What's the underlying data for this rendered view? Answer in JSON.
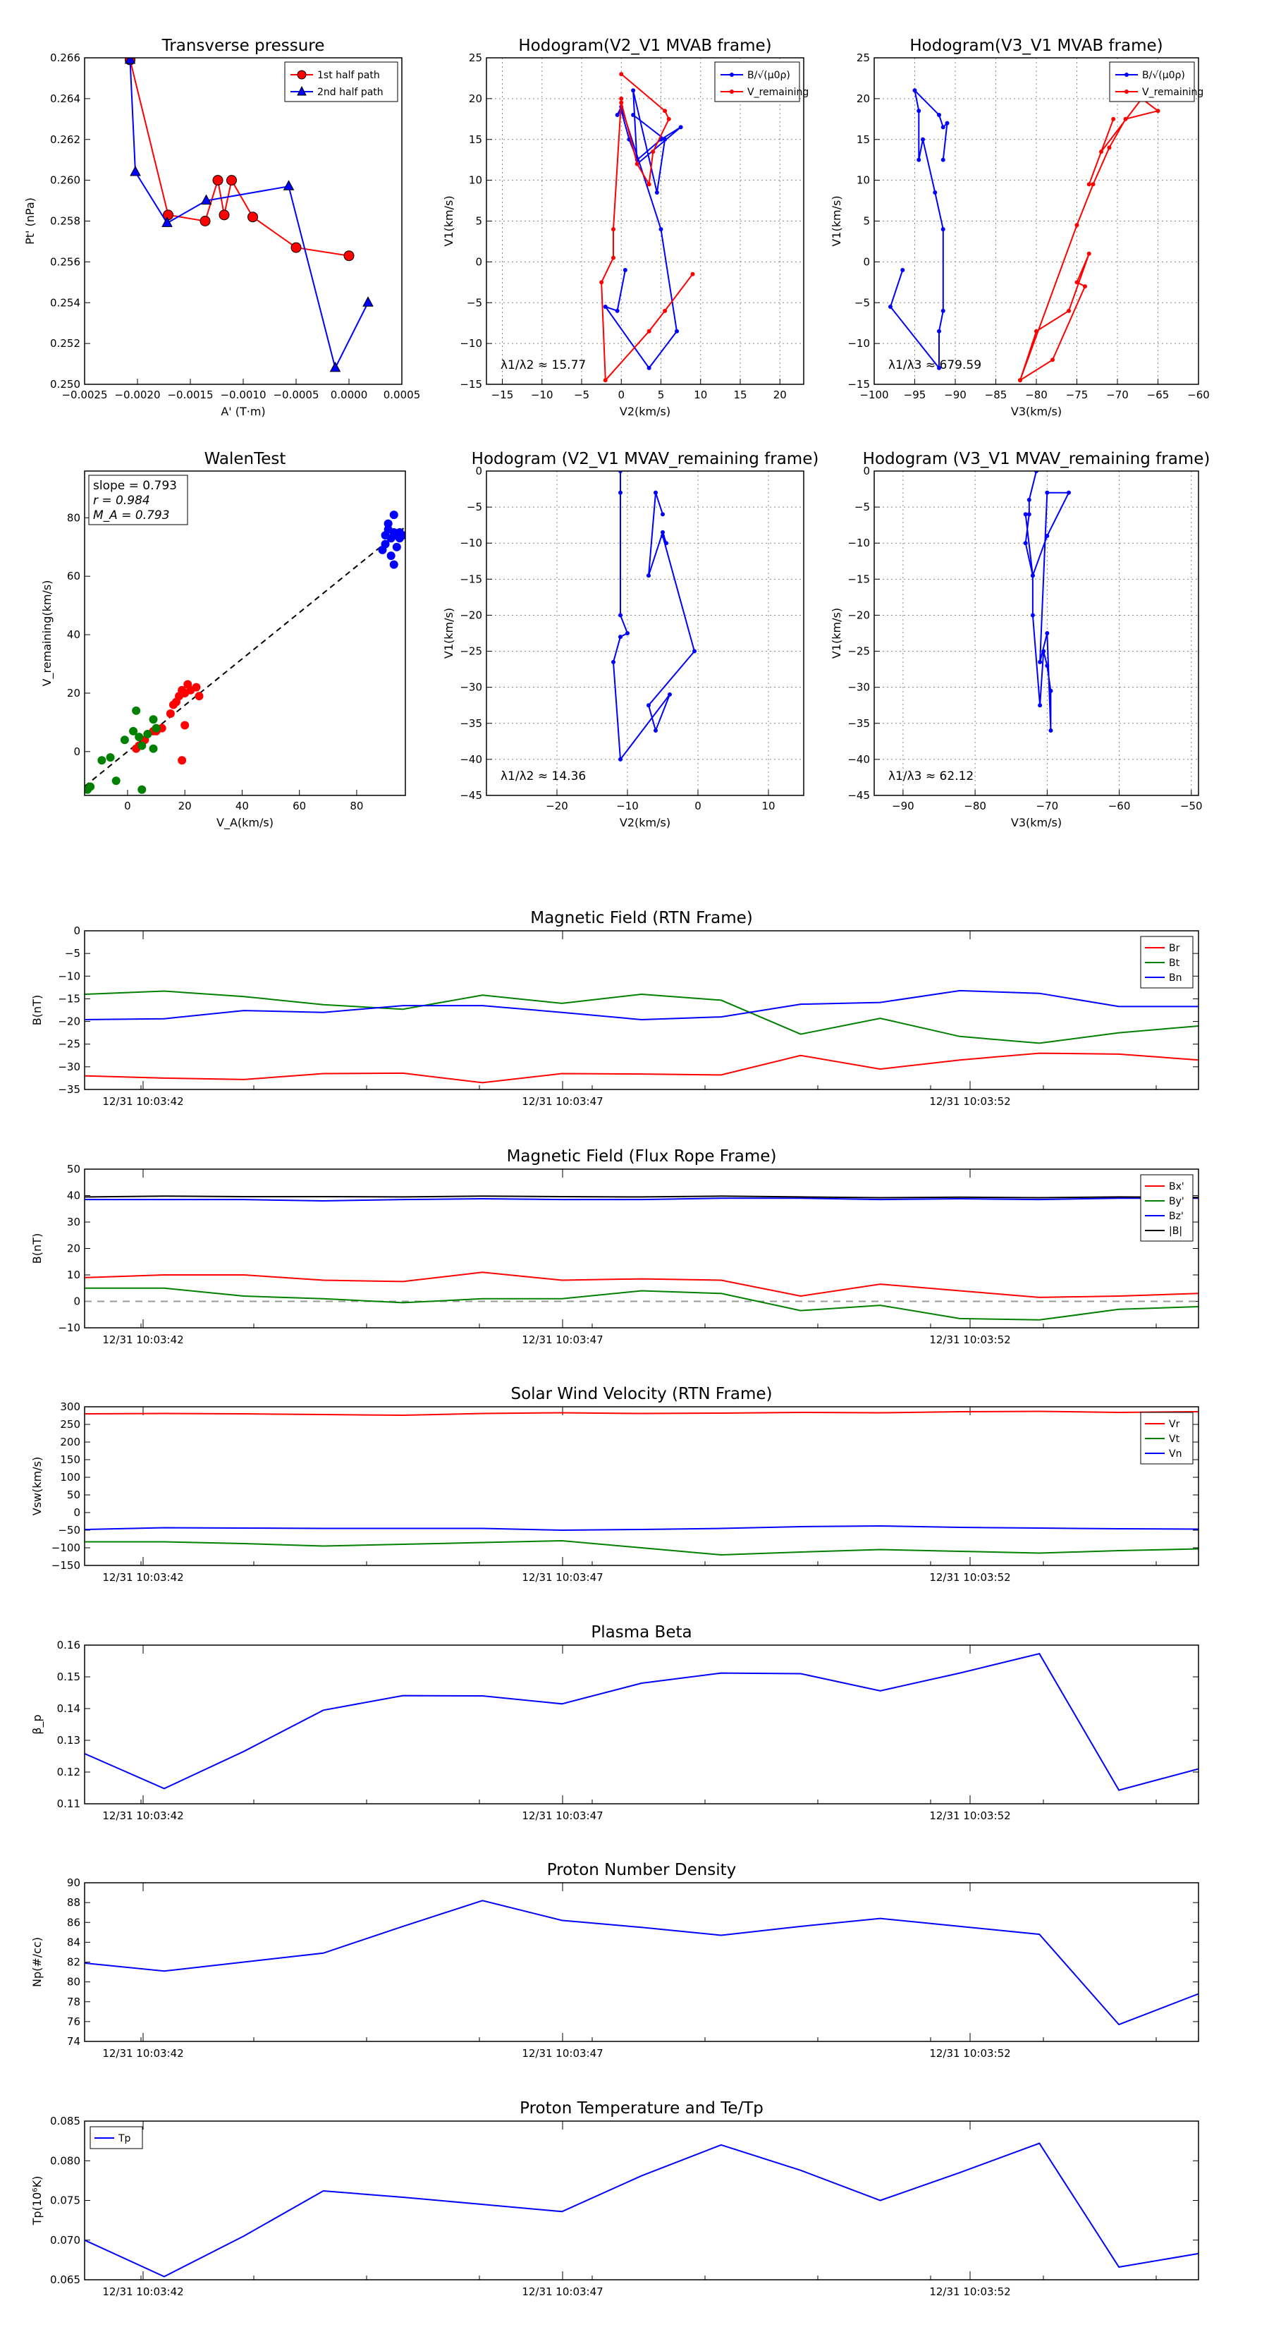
{
  "colors": {
    "red": "#ff0000",
    "green": "#008000",
    "blue": "#0000ff",
    "black": "#000000",
    "grid": "#999999"
  },
  "chart_data": [
    {
      "id": "transverse_pressure",
      "type": "scatter",
      "title": "Transverse pressure",
      "xlabel": "A' (T·m)",
      "ylabel": "Pt' (nPa)",
      "xlim": [
        -0.0025,
        0.0005
      ],
      "ylim": [
        0.25,
        0.266
      ],
      "xticks": [
        "−0.0025",
        "−0.0020",
        "−0.0015",
        "−0.0010",
        "−0.0005",
        "0.0000",
        "0.0005"
      ],
      "yticks": [
        "0.250",
        "0.252",
        "0.254",
        "0.256",
        "0.258",
        "0.260",
        "0.262",
        "0.264",
        "0.266"
      ],
      "legend_position": "top-right",
      "series": [
        {
          "name": "1st half path",
          "color": "#ff0000",
          "marker": "circle",
          "x": [
            -0.00207,
            -0.00171,
            -0.00136,
            -0.00124,
            -0.00118,
            -0.00111,
            -0.00091,
            -0.0005,
            0.0
          ],
          "y": [
            0.2659,
            0.2583,
            0.258,
            0.26,
            0.2583,
            0.26,
            0.2582,
            0.2567,
            0.2563
          ]
        },
        {
          "name": "2nd half path",
          "color": "#0000ff",
          "marker": "triangle",
          "x": [
            -0.00207,
            -0.00202,
            -0.00172,
            -0.00135,
            -0.00057,
            -0.00013,
            0.00018
          ],
          "y": [
            0.2659,
            0.2604,
            0.2579,
            0.259,
            0.2597,
            0.2508,
            0.254
          ]
        }
      ]
    },
    {
      "id": "hodogram_v2v1_mvab",
      "type": "line",
      "title": "Hodogram(V2_V1 MVAB frame)",
      "xlabel": "V2(km/s)",
      "ylabel": "V1(km/s)",
      "xlim": [
        -17,
        23
      ],
      "ylim": [
        -15,
        25
      ],
      "xticks": [
        "−15",
        "−10",
        "−5",
        "0",
        "5",
        "10",
        "15",
        "20"
      ],
      "yticks": [
        "−15",
        "−10",
        "−5",
        "0",
        "5",
        "10",
        "15",
        "20",
        "25"
      ],
      "annotation": "λ1/λ2 ≈ 15.77",
      "legend_position": "top-right",
      "legend": [
        "B/√(μ0ρ)",
        "V_remaining"
      ],
      "series": [
        {
          "name": "B/√(μ0ρ)",
          "color": "#0000ff",
          "x": [
            0.5,
            -0.5,
            -2,
            3.5,
            7,
            5,
            0,
            -0.5,
            0,
            1,
            2,
            5,
            7.5,
            2,
            1.5,
            4.5,
            5.5,
            1.5
          ],
          "y": [
            -1,
            -6,
            -5.5,
            -13,
            -8.5,
            4,
            19,
            18,
            18.5,
            15,
            12.5,
            15,
            16.5,
            12,
            21,
            8.5,
            15,
            18
          ]
        },
        {
          "name": "V_remaining",
          "color": "#ff0000",
          "x": [
            0,
            5.5,
            6,
            4,
            3.5,
            2,
            0,
            0,
            -1,
            -1,
            -2.5,
            -2,
            3.5,
            5.5,
            9
          ],
          "y": [
            23,
            18.5,
            17.5,
            13.5,
            9.5,
            12,
            19.5,
            20,
            4,
            0.5,
            -2.5,
            -14.5,
            -8.5,
            -6,
            -1.5
          ]
        }
      ]
    },
    {
      "id": "hodogram_v3v1_mvab",
      "type": "line",
      "title": "Hodogram(V3_V1 MVAB frame)",
      "xlabel": "V3(km/s)",
      "ylabel": "V1(km/s)",
      "xlim": [
        -100,
        -60
      ],
      "ylim": [
        -15,
        25
      ],
      "xticks": [
        "−100",
        "−95",
        "−90",
        "−85",
        "−80",
        "−75",
        "−70",
        "−65",
        "−60"
      ],
      "yticks": [
        "−15",
        "−10",
        "−5",
        "0",
        "5",
        "10",
        "15",
        "20",
        "25"
      ],
      "annotation": "λ1/λ3 ≈ 679.59",
      "legend_position": "top-right",
      "legend": [
        "B/√(μ0ρ)",
        "V_remaining"
      ],
      "series": [
        {
          "name": "B/√(μ0ρ)",
          "color": "#0000ff",
          "x": [
            -96.5,
            -98,
            -92,
            -92,
            -91.5,
            -91.5,
            -92.5,
            -94,
            -94.5,
            -94.5,
            -95,
            -92,
            -91.5,
            -91,
            -91.5
          ],
          "y": [
            -1,
            -5.5,
            -13,
            -8.5,
            -6,
            4,
            8.5,
            15,
            12.5,
            18.5,
            21,
            18,
            16.5,
            17,
            12.5
          ]
        },
        {
          "name": "V_remaining",
          "color": "#ff0000",
          "x": [
            -82,
            -80,
            -76,
            -73.5,
            -75,
            -74,
            -78,
            -82,
            -75,
            -73,
            -71,
            -69,
            -65,
            -67,
            -72,
            -70.5,
            -73.5
          ],
          "y": [
            -14.5,
            -8.5,
            -6,
            1,
            -2.5,
            -3,
            -12,
            -14.5,
            4.5,
            9.5,
            14,
            17.5,
            18.5,
            20,
            13.5,
            17.5,
            9.5
          ]
        }
      ]
    },
    {
      "id": "walen_test",
      "type": "scatter",
      "title": "WalenTest",
      "xlabel": "V_A(km/s)",
      "ylabel": "V_remaining(km/s)",
      "xlim": [
        -15,
        97
      ],
      "ylim": [
        -15,
        96
      ],
      "xticks": [
        "0",
        "20",
        "40",
        "60",
        "80"
      ],
      "yticks": [
        "0",
        "20",
        "40",
        "60",
        "80"
      ],
      "stats": {
        "slope": "slope = 0.793",
        "r": "r = 0.984",
        "ma": "M_A = 0.793"
      },
      "fit_line": {
        "slope": 0.793,
        "intercept": 0
      },
      "series": [
        {
          "name": "red",
          "color": "#ff0000",
          "x": [
            10,
            12,
            15,
            16,
            17,
            18,
            19,
            20,
            21,
            22,
            24,
            25,
            9,
            6,
            4,
            3,
            20,
            19
          ],
          "y": [
            7,
            8,
            13,
            16,
            17,
            19,
            21,
            20,
            23,
            21,
            22,
            19,
            7,
            4,
            2,
            1,
            9,
            -3
          ]
        },
        {
          "name": "green",
          "color": "#008000",
          "x": [
            -14,
            -13,
            -9,
            -6,
            -4,
            -1,
            2,
            4,
            3,
            5,
            7,
            9,
            9,
            10,
            5
          ],
          "y": [
            -13,
            -12,
            -3,
            -2,
            -10,
            4,
            7,
            5,
            14,
            2,
            6,
            11,
            1,
            8,
            -13
          ]
        },
        {
          "name": "blue",
          "color": "#0000ff",
          "x": [
            89,
            90,
            90,
            91,
            91,
            92,
            92,
            93,
            93,
            93,
            94,
            94,
            95,
            95,
            96
          ],
          "y": [
            69,
            71,
            74,
            76,
            78,
            73,
            67,
            75,
            81,
            64,
            70,
            74,
            75,
            73,
            74
          ]
        }
      ]
    },
    {
      "id": "hodogram_v2v1_mvav",
      "type": "line",
      "title": "Hodogram (V2_V1 MVAV_remaining frame)",
      "xlabel": "V2(km/s)",
      "ylabel": "V1(km/s)",
      "xlim": [
        -30,
        15
      ],
      "ylim": [
        -45,
        0
      ],
      "xticks": [
        "−20",
        "−10",
        "0",
        "10"
      ],
      "yticks": [
        "−45",
        "−40",
        "−35",
        "−30",
        "−25",
        "−20",
        "−15",
        "−10",
        "−5",
        "0"
      ],
      "annotation": "λ1/λ2 ≈ 14.36",
      "series": [
        {
          "name": "B",
          "color": "#0000ff",
          "x": [
            -11,
            -11,
            -11,
            -10,
            -11,
            -12,
            -11,
            -4,
            -6,
            -7,
            -0.5,
            -5,
            -4.5,
            -5,
            -7,
            -6,
            -5
          ],
          "y": [
            0,
            -3,
            -20,
            -22.5,
            -23,
            -26.5,
            -40,
            -31,
            -36,
            -32.5,
            -25,
            -9,
            -10,
            -8.5,
            -14.5,
            -3,
            -6
          ]
        }
      ]
    },
    {
      "id": "hodogram_v3v1_mvav",
      "type": "line",
      "title": "Hodogram (V3_V1 MVAV_remaining frame)",
      "xlabel": "V3(km/s)",
      "ylabel": "V1(km/s)",
      "xlim": [
        -94,
        -49
      ],
      "ylim": [
        -45,
        0
      ],
      "xticks": [
        "−90",
        "−80",
        "−70",
        "−60",
        "−50"
      ],
      "yticks": [
        "−45",
        "−40",
        "−35",
        "−30",
        "−25",
        "−20",
        "−15",
        "−10",
        "−5",
        "0"
      ],
      "annotation": "λ1/λ3 ≈ 62.12",
      "series": [
        {
          "name": "B",
          "color": "#0000ff",
          "x": [
            -71.5,
            -72.5,
            -72.5,
            -73,
            -72,
            -72,
            -71,
            -70.5,
            -70,
            -69.5,
            -69.5,
            -70,
            -71,
            -70,
            -67,
            -70,
            -72,
            -73
          ],
          "y": [
            0,
            -4,
            -6,
            -10,
            -14.5,
            -20,
            -32.5,
            -25,
            -27,
            -30.5,
            -36,
            -22.5,
            -26.5,
            -3,
            -3,
            -9,
            -14.5,
            -6
          ]
        }
      ]
    },
    {
      "id": "magnetic_field_rtn",
      "type": "line",
      "title": "Magnetic Field (RTN Frame)",
      "ylabel": "B(nT)",
      "ylim": [
        -35,
        0
      ],
      "yticks": [
        "−35",
        "−30",
        "−25",
        "−20",
        "−15",
        "−10",
        "−5",
        "0"
      ],
      "x_labels": [
        "12/31 10:03:42",
        "12/31 10:03:47",
        "12/31 10:03:52"
      ],
      "legend": [
        "Br",
        "Bt",
        "Bn"
      ],
      "legend_position": "top-right",
      "series": [
        {
          "name": "Br",
          "color": "#ff0000",
          "values": [
            -32,
            -32.5,
            -32.8,
            -31.5,
            -31.4,
            -33.5,
            -31.5,
            -31.6,
            -31.8,
            -27.5,
            -30.5,
            -28.5,
            -27,
            -27.2,
            -28.5
          ]
        },
        {
          "name": "Bt",
          "color": "#008000",
          "values": [
            -14,
            -13.3,
            -14.5,
            -16.3,
            -17.3,
            -14.2,
            -16,
            -14,
            -15.3,
            -22.8,
            -19.3,
            -23.3,
            -24.8,
            -22.5,
            -21
          ]
        },
        {
          "name": "Bn",
          "color": "#0000ff",
          "values": [
            -19.6,
            -19.4,
            -17.6,
            -18,
            -16.5,
            -16.5,
            -18,
            -19.6,
            -19,
            -16.2,
            -15.8,
            -13.2,
            -13.8,
            -16.7,
            -16.7
          ]
        }
      ]
    },
    {
      "id": "magnetic_field_fluxrope",
      "type": "line",
      "title": "Magnetic Field (Flux Rope Frame)",
      "ylabel": "B(nT)",
      "ylim": [
        -10,
        50
      ],
      "yticks": [
        "−10",
        "0",
        "10",
        "20",
        "30",
        "40",
        "50"
      ],
      "x_labels": [
        "12/31 10:03:42",
        "12/31 10:03:47",
        "12/31 10:03:52"
      ],
      "legend": [
        "Bx'",
        "By'",
        "Bz'",
        "|B|"
      ],
      "legend_position": "top-right",
      "series": [
        {
          "name": "Bx'",
          "color": "#ff0000",
          "values": [
            9,
            10,
            10,
            8,
            7.5,
            11,
            8,
            8.5,
            8,
            2,
            6.5,
            4,
            1.5,
            2,
            3
          ]
        },
        {
          "name": "By'",
          "color": "#008000",
          "values": [
            5,
            5,
            2,
            1,
            -0.5,
            1,
            1,
            4,
            3,
            -3.5,
            -1.5,
            -6.5,
            -7,
            -3,
            -2
          ]
        },
        {
          "name": "Bz'",
          "color": "#0000ff",
          "values": [
            38.5,
            38.5,
            38.5,
            38,
            38.5,
            38.8,
            38.5,
            38.5,
            39,
            39,
            38.5,
            38.8,
            38.5,
            39,
            39
          ]
        },
        {
          "name": "|B|",
          "color": "#000000",
          "values": [
            39.5,
            39.8,
            39.6,
            39.6,
            39.5,
            39.8,
            39.6,
            39.5,
            39.8,
            39.5,
            39.2,
            39.4,
            39.2,
            39.5,
            39.3
          ]
        }
      ]
    },
    {
      "id": "solar_wind_velocity",
      "type": "line",
      "title": "Solar Wind Velocity (RTN Frame)",
      "ylabel": "Vsw(km/s)",
      "ylim": [
        -150,
        300
      ],
      "yticks": [
        "−150",
        "−100",
        "−50",
        "0",
        "50",
        "100",
        "150",
        "200",
        "250",
        "300"
      ],
      "x_labels": [
        "12/31 10:03:42",
        "12/31 10:03:47",
        "12/31 10:03:52"
      ],
      "legend": [
        "Vr",
        "Vt",
        "Vn"
      ],
      "legend_position": "top-right",
      "series": [
        {
          "name": "Vr",
          "color": "#ff0000",
          "values": [
            280,
            281,
            280,
            278,
            276,
            281,
            283,
            281,
            282,
            284,
            283,
            286,
            287,
            284,
            286
          ]
        },
        {
          "name": "Vt",
          "color": "#008000",
          "values": [
            -83,
            -83,
            -88,
            -95,
            -90,
            -85,
            -80,
            -100,
            -120,
            -112,
            -105,
            -110,
            -115,
            -108,
            -103
          ]
        },
        {
          "name": "Vn",
          "color": "#0000ff",
          "values": [
            -48,
            -43,
            -44,
            -45,
            -45,
            -45,
            -50,
            -48,
            -45,
            -40,
            -38,
            -42,
            -44,
            -46,
            -47
          ]
        }
      ]
    },
    {
      "id": "plasma_beta",
      "type": "line",
      "title": "Plasma Beta",
      "ylabel": "β_p",
      "ylim": [
        0.11,
        0.16
      ],
      "yticks": [
        "0.11",
        "0.12",
        "0.13",
        "0.14",
        "0.15",
        "0.16"
      ],
      "x_labels": [
        "12/31 10:03:42",
        "12/31 10:03:47",
        "12/31 10:03:52"
      ],
      "series": [
        {
          "name": "beta",
          "color": "#0000ff",
          "values": [
            0.1258,
            0.1148,
            0.1265,
            0.1395,
            0.1441,
            0.144,
            0.1415,
            0.148,
            0.1512,
            0.151,
            0.1456,
            0.1512,
            0.1573,
            0.1143,
            0.121
          ]
        }
      ]
    },
    {
      "id": "proton_density",
      "type": "line",
      "title": "Proton Number Density",
      "ylabel": "Np(#/cc)",
      "ylim": [
        74,
        90
      ],
      "yticks": [
        "74",
        "76",
        "78",
        "80",
        "82",
        "84",
        "86",
        "88",
        "90"
      ],
      "x_labels": [
        "12/31 10:03:42",
        "12/31 10:03:47",
        "12/31 10:03:52"
      ],
      "series": [
        {
          "name": "Np",
          "color": "#0000ff",
          "values": [
            81.9,
            81.1,
            82.0,
            82.9,
            85.6,
            88.2,
            86.2,
            85.5,
            84.7,
            85.6,
            86.4,
            85.6,
            84.8,
            75.7,
            78.8
          ]
        }
      ]
    },
    {
      "id": "proton_temperature",
      "type": "line",
      "title": "Proton Temperature and Te/Tp",
      "ylabel": "Tp(10⁶K)",
      "ylim": [
        0.065,
        0.085
      ],
      "yticks": [
        "0.065",
        "0.070",
        "0.075",
        "0.080",
        "0.085"
      ],
      "x_labels": [
        "12/31 10:03:42",
        "12/31 10:03:47",
        "12/31 10:03:52"
      ],
      "legend": [
        "Tp"
      ],
      "legend_position": "top-left",
      "series": [
        {
          "name": "Tp",
          "color": "#0000ff",
          "values": [
            0.07,
            0.0654,
            0.0705,
            0.0762,
            0.0754,
            0.0745,
            0.0736,
            0.0781,
            0.082,
            0.0788,
            0.075,
            0.0785,
            0.0822,
            0.0666,
            0.0683
          ]
        }
      ]
    }
  ]
}
